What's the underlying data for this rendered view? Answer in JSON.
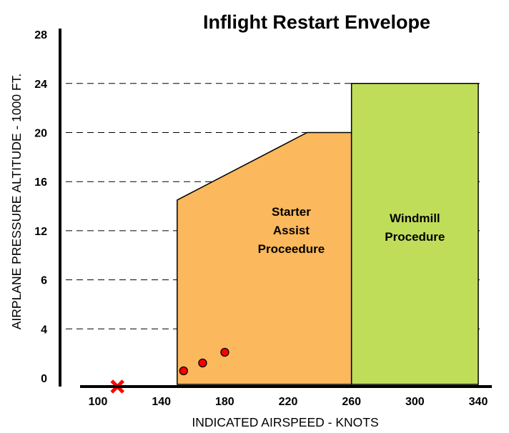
{
  "chart_data": {
    "type": "area",
    "title": "Inflight Restart Envelope",
    "xlabel": "INDICATED AIRSPEED - KNOTS",
    "ylabel": "AIRPLANE PRESSURE ALTITUDE - 1000 FT.",
    "x_tick_labels": [
      "100",
      "140",
      "180",
      "220",
      "260",
      "300",
      "340"
    ],
    "y_tick_labels": [
      "0",
      "4",
      "6",
      "12",
      "16",
      "20",
      "24",
      "28"
    ],
    "grid": "horizontal dashed",
    "regions": [
      {
        "name": "Starter Assist Proceedure",
        "label_lines": [
          "Starter",
          "Assist",
          "Proceedure"
        ],
        "color": "#fbb85c",
        "polygon": [
          [
            150,
            0
          ],
          [
            150,
            14.5
          ],
          [
            232,
            20
          ],
          [
            260,
            20
          ],
          [
            260,
            0
          ]
        ]
      },
      {
        "name": "Windmill Procedure",
        "label_lines": [
          "Windmill",
          "Procedure"
        ],
        "color": "#c0dd5a",
        "polygon": [
          [
            260,
            0
          ],
          [
            260,
            24
          ],
          [
            340,
            24
          ],
          [
            340,
            0
          ]
        ]
      }
    ],
    "points": [
      {
        "x": 150,
        "y": 0.6
      },
      {
        "x": 162,
        "y": 1.2
      },
      {
        "x": 176,
        "y": 2.0
      }
    ],
    "point_color": "#ff0000",
    "marker": {
      "symbol": "X",
      "x": 115,
      "y": 0,
      "color": "#ff0000"
    }
  }
}
